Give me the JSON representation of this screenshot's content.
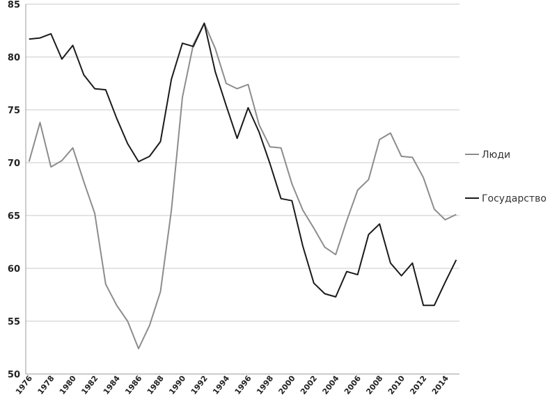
{
  "chart_data": {
    "type": "line",
    "title": "",
    "xlabel": "",
    "ylabel": "",
    "ylim": [
      50,
      85
    ],
    "yticks": [
      50,
      55,
      60,
      65,
      70,
      75,
      80,
      85
    ],
    "x": [
      1976,
      1977,
      1978,
      1979,
      1980,
      1981,
      1982,
      1983,
      1984,
      1985,
      1986,
      1987,
      1988,
      1989,
      1990,
      1991,
      1992,
      1993,
      1994,
      1995,
      1996,
      1997,
      1998,
      1999,
      2000,
      2001,
      2002,
      2003,
      2004,
      2005,
      2006,
      2007,
      2008,
      2009,
      2010,
      2011,
      2012,
      2013,
      2014,
      2015
    ],
    "xticks": [
      "1976",
      "1978",
      "1980",
      "1982",
      "1984",
      "1986",
      "1988",
      "1990",
      "1992",
      "1994",
      "1996",
      "1998",
      "2000",
      "2002",
      "2004",
      "2006",
      "2008",
      "2010",
      "2012",
      "2014"
    ],
    "grid": true,
    "legend_position": "right",
    "series": [
      {
        "name": "Люди",
        "color": "#8c8c8c",
        "values": [
          70.1,
          73.8,
          69.6,
          70.2,
          71.4,
          68.2,
          65.2,
          58.5,
          56.5,
          55.0,
          52.4,
          54.6,
          57.8,
          65.5,
          76.2,
          81.2,
          83.2,
          80.8,
          77.5,
          77.0,
          77.4,
          73.6,
          71.5,
          71.4,
          68.0,
          65.5,
          63.8,
          62.0,
          61.3,
          64.5,
          67.4,
          68.4,
          72.2,
          72.8,
          70.6,
          70.5,
          68.6,
          65.6,
          64.6,
          65.1
        ]
      },
      {
        "name": "Государство",
        "color": "#1a1a1a",
        "values": [
          81.7,
          81.8,
          82.2,
          79.8,
          81.1,
          78.3,
          77.0,
          76.9,
          74.2,
          71.8,
          70.1,
          70.6,
          72.0,
          77.9,
          81.3,
          81.0,
          83.2,
          78.6,
          75.4,
          72.3,
          75.2,
          72.9,
          69.9,
          66.6,
          66.4,
          62.1,
          58.6,
          57.6,
          57.3,
          59.7,
          59.4,
          63.2,
          64.2,
          60.5,
          59.3,
          60.5,
          56.5,
          56.5,
          58.7,
          60.8
        ]
      }
    ]
  }
}
